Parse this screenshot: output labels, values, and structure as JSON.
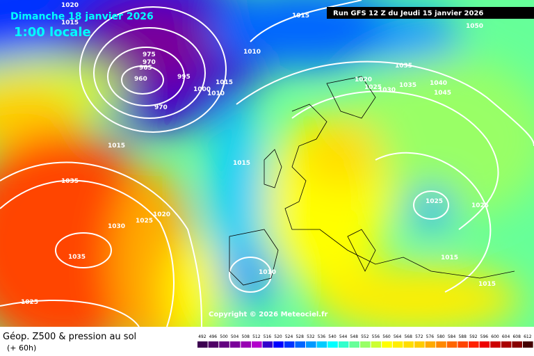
{
  "header": {
    "date": "Dimanche 18 janvier 2026",
    "time": "1:00 locale",
    "run": "Run GFS 12 Z du Jeudi 15 janvier 2026"
  },
  "copyright": "Copyright © 2026 Meteociel.fr",
  "isobar_labels": [
    "1020",
    "1015",
    "1015",
    "1010",
    "975",
    "970",
    "965",
    "960",
    "970",
    "995",
    "1000",
    "1010",
    "1015",
    "1015",
    "1015",
    "1035",
    "1030",
    "1025",
    "1020",
    "1035",
    "1025",
    "1010",
    "1020",
    "1025",
    "1030",
    "1035",
    "1035",
    "1040",
    "1045",
    "1050",
    "1025",
    "1025",
    "1015",
    "1015"
  ],
  "legend": {
    "title": "Géop. Z500 & pression au sol",
    "lead": "(+ 60h)",
    "ticks": [
      492,
      496,
      500,
      504,
      508,
      512,
      516,
      520,
      524,
      528,
      532,
      536,
      540,
      544,
      548,
      552,
      556,
      560,
      564,
      568,
      572,
      576,
      580,
      584,
      588,
      592,
      596,
      600,
      604,
      608,
      612
    ],
    "colors": [
      "#3c0050",
      "#500066",
      "#640080",
      "#7a0099",
      "#9900b3",
      "#b300cc",
      "#3300cc",
      "#0000ff",
      "#0033ff",
      "#0066ff",
      "#0099ff",
      "#00ccff",
      "#00ffff",
      "#33ffcc",
      "#66ff99",
      "#99ff66",
      "#ccff33",
      "#ffff00",
      "#ffee00",
      "#ffdd00",
      "#ffcc00",
      "#ffaa00",
      "#ff8800",
      "#ff6600",
      "#ff4400",
      "#ff2200",
      "#ee0000",
      "#cc0000",
      "#aa0000",
      "#880000",
      "#440000"
    ]
  }
}
